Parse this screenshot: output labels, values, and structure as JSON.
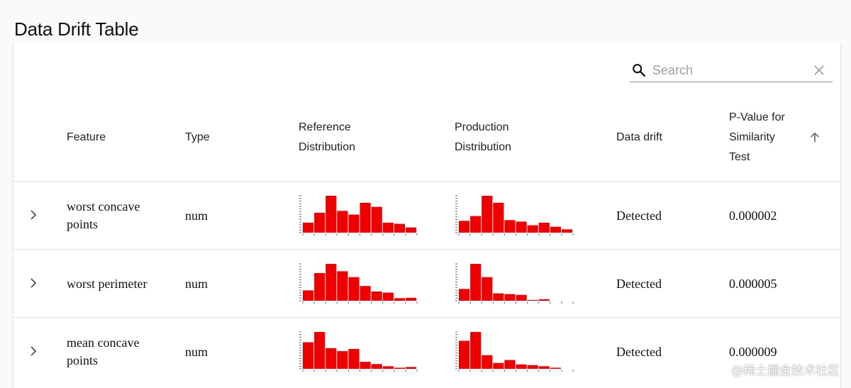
{
  "title": "Data Drift Table",
  "search": {
    "placeholder": "Search",
    "value": ""
  },
  "icons": {
    "search": "search-icon",
    "clear": "close-icon",
    "sort": "arrow-up-icon",
    "expand": "chevron-right-icon"
  },
  "columns": {
    "feature": "Feature",
    "type": "Type",
    "reference_line1": "Reference",
    "reference_line2": "Distribution",
    "production_line1": "Production",
    "production_line2": "Distribution",
    "drift": "Data drift",
    "pvalue_line1": "P-Value for",
    "pvalue_line2": "Similarity",
    "pvalue_line3": "Test"
  },
  "rows": [
    {
      "feature_line1": "worst concave",
      "feature_line2": "points",
      "type": "num",
      "drift": "Detected",
      "pvalue": "0.000002",
      "reference_hist": [
        0.27,
        0.54,
        1.0,
        0.59,
        0.49,
        0.81,
        0.7,
        0.27,
        0.24,
        0.14
      ],
      "production_hist": [
        0.32,
        0.45,
        1.0,
        0.81,
        0.34,
        0.3,
        0.2,
        0.27,
        0.16,
        0.09
      ]
    },
    {
      "feature_line1": "worst perimeter",
      "feature_line2": "",
      "type": "num",
      "drift": "Detected",
      "pvalue": "0.000005",
      "reference_hist": [
        0.28,
        0.75,
        1.0,
        0.8,
        0.64,
        0.4,
        0.25,
        0.22,
        0.07,
        0.08
      ],
      "production_hist": [
        0.32,
        1.0,
        0.64,
        0.2,
        0.18,
        0.16,
        0.02,
        0.04,
        0.0,
        0.0
      ]
    },
    {
      "feature_line1": "mean concave",
      "feature_line2": "points",
      "type": "num",
      "drift": "Detected",
      "pvalue": "0.000009",
      "reference_hist": [
        0.72,
        1.0,
        0.56,
        0.48,
        0.54,
        0.19,
        0.13,
        0.07,
        0.03,
        0.05
      ],
      "production_hist": [
        0.76,
        1.0,
        0.37,
        0.16,
        0.24,
        0.12,
        0.1,
        0.07,
        0.03,
        0.0
      ]
    }
  ],
  "watermark": "@稀土掘金技术社区"
}
